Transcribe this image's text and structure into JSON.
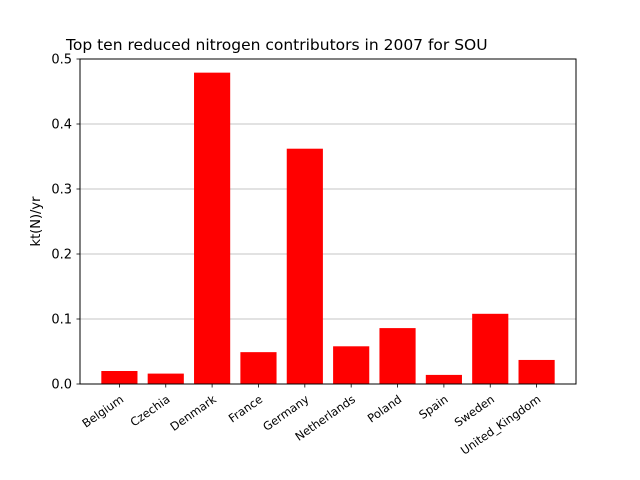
{
  "chart_data": {
    "type": "bar",
    "title": "Top ten reduced nitrogen contributors in 2007 for  SOU",
    "xlabel": "",
    "ylabel": "kt(N)/yr",
    "categories": [
      "Belgium",
      "Czechia",
      "Denmark",
      "France",
      "Germany",
      "Netherlands",
      "Poland",
      "Spain",
      "Sweden",
      "United_Kingdom"
    ],
    "values": [
      0.02,
      0.016,
      0.479,
      0.049,
      0.362,
      0.058,
      0.086,
      0.014,
      0.108,
      0.037
    ],
    "ylim": [
      0,
      0.5
    ],
    "yticks": [
      "0.0",
      "0.1",
      "0.2",
      "0.3",
      "0.4",
      "0.5"
    ],
    "bar_color": "#ff0000",
    "grid": "y-major",
    "legend": "none"
  }
}
